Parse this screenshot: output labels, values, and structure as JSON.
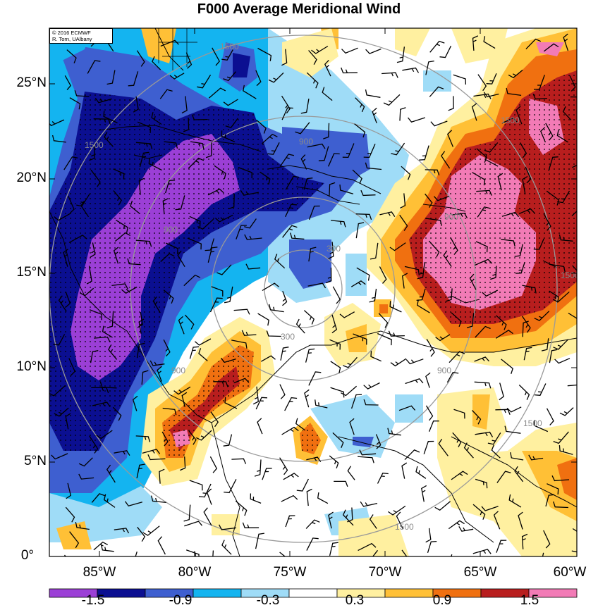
{
  "title": "F000 Average Meridional Wind",
  "credit": {
    "line1": "© 2016 ECMWF",
    "line2": "R. Torn, UAlbany"
  },
  "lat_labels": [
    "25°N",
    "20°N",
    "15°N",
    "10°N",
    "5°N",
    "0°"
  ],
  "lon_labels": [
    "85°W",
    "80°W",
    "75°W",
    "70°W",
    "65°W",
    "60°W"
  ],
  "colorbar": {
    "colors": [
      "#9b3fd6",
      "#0b0f91",
      "#3e5fd0",
      "#14b4f0",
      "#9fdcf7",
      "#ffffff",
      "#fff0a0",
      "#ffc036",
      "#f07010",
      "#b81e1e",
      "#f27bb6"
    ],
    "labels": [
      "-1.5",
      "-0.9",
      "-0.3",
      "0.3",
      "0.9",
      "1.5"
    ]
  },
  "contour_labels": [
    "300",
    "300",
    "900",
    "900",
    "900",
    "900",
    "900",
    "1500",
    "1500",
    "1500",
    "1500",
    "1500",
    "1500"
  ],
  "legend_colors": {
    "purple": "#9b3fd6",
    "navy": "#0b0f91",
    "blue": "#3e5fd0",
    "cyan": "#14b4f0",
    "lightblue": "#9fdcf7",
    "yellow": "#fff0a0",
    "orange": "#ffc036",
    "redorange": "#f07010",
    "red": "#b81e1e",
    "pink": "#f27bb6"
  }
}
